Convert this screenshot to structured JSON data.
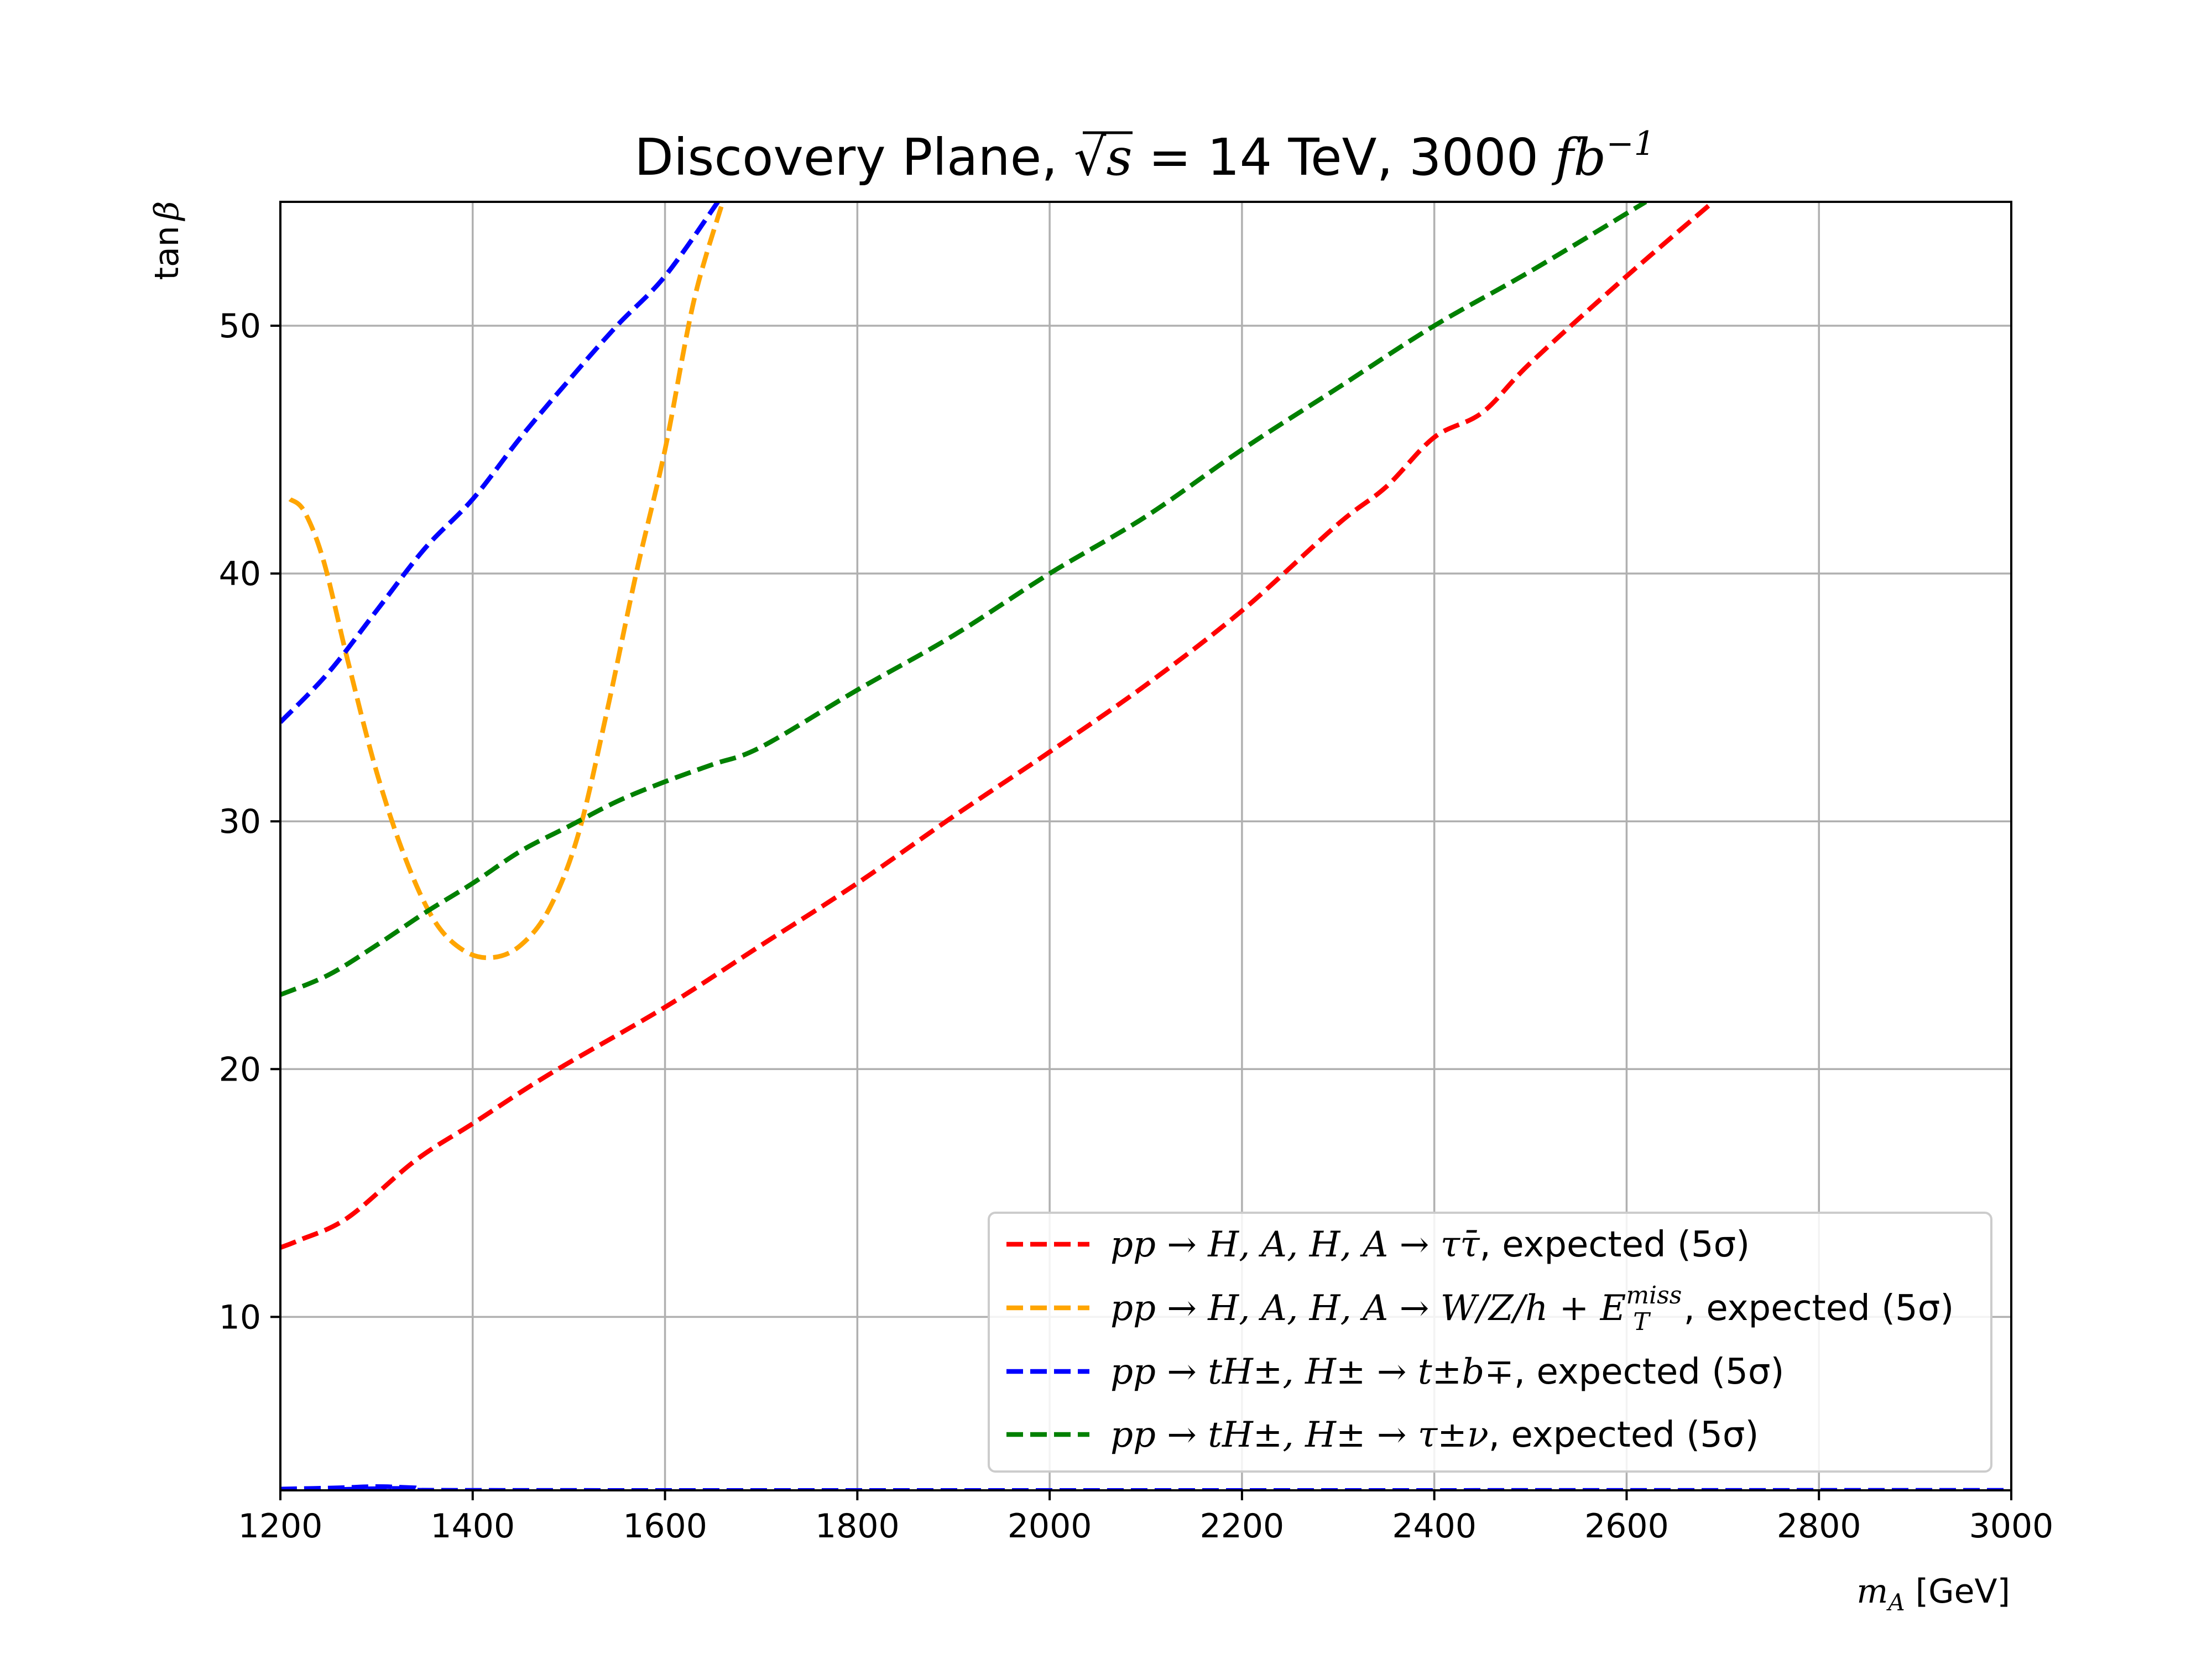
{
  "chart_data": {
    "type": "line",
    "title": "Discovery Plane, √s = 14 TeV, 3000 fb⁻¹",
    "title_parts": {
      "prefix": "Discovery Plane, √",
      "s": "s",
      "mid": " = 14 TeV, 3000 ",
      "fb": "fb",
      "exp": "−1"
    },
    "xlabel": "m_A [GeV]",
    "xlabel_parts": {
      "m": "m",
      "sub": "A",
      "unit": " [GeV]"
    },
    "ylabel": "tanβ",
    "ylabel_parts": {
      "tan": "tan",
      "beta": "β"
    },
    "xlim": [
      1200,
      3000
    ],
    "ylim": [
      3,
      55
    ],
    "xticks": [
      1200,
      1400,
      1600,
      1800,
      2000,
      2200,
      2400,
      2600,
      2800,
      3000
    ],
    "yticks": [
      10,
      20,
      30,
      40,
      50
    ],
    "grid": true,
    "legend_location": "lower-right",
    "series": [
      {
        "name": "pp→H,A,H,A→ττ̄, expected (5σ)",
        "legend_math": "pp → H, A, H, A → ττ̄",
        "legend_suffix": ", expected (5σ)",
        "color": "#ff0000",
        "x": [
          1200,
          1220,
          1270,
          1340,
          1400,
          1480,
          1600,
          1700,
          1800,
          1900,
          2000,
          2100,
          2200,
          2300,
          2350,
          2400,
          2450,
          2500,
          2600,
          2690
        ],
        "y": [
          12.8,
          13.1,
          14.0,
          16.3,
          17.8,
          19.8,
          22.5,
          25.0,
          27.5,
          30.2,
          32.8,
          35.5,
          38.5,
          42.0,
          43.5,
          45.5,
          46.5,
          48.5,
          52.0,
          55.0
        ]
      },
      {
        "name": "pp→H,A,H,A→W/Z/h+E_T^miss, expected (5σ)",
        "legend_math": "pp → H, A, H, A → W/Z/h + E",
        "legend_sup": "miss",
        "legend_sub": "T",
        "legend_suffix": ", expected (5σ)",
        "color": "#ffa500",
        "x": [
          1210,
          1225,
          1245,
          1270,
          1300,
          1330,
          1360,
          1390,
          1420,
          1450,
          1480,
          1510,
          1540,
          1570,
          1600,
          1630,
          1660
        ],
        "y": [
          43.0,
          42.5,
          40.5,
          36.5,
          32.0,
          28.5,
          26.0,
          24.8,
          24.5,
          25.0,
          26.5,
          29.5,
          34.5,
          40.0,
          45.0,
          51.0,
          55.0
        ]
      },
      {
        "name": "pp→tH±, H±→t±b∓, expected (5σ)",
        "legend_math": "pp → tH±, H± → t±b∓",
        "legend_suffix": ", expected (5σ)",
        "color": "#0000ff",
        "x": [
          1200,
          1250,
          1300,
          1350,
          1400,
          1450,
          1500,
          1550,
          1600,
          1655
        ],
        "y": [
          34.0,
          36.0,
          38.5,
          41.0,
          43.0,
          45.5,
          47.8,
          50.0,
          52.0,
          55.0
        ],
        "x_baseline": [
          1200,
          1260,
          1300,
          1340,
          1400,
          3000
        ],
        "y_baseline": [
          3.05,
          3.1,
          3.15,
          3.1,
          3.0,
          3.0
        ]
      },
      {
        "name": "pp→tH±, H±→τ±ν, expected (5σ)",
        "legend_math": "pp → tH±, H± → τ±ν",
        "legend_suffix": ", expected (5σ)",
        "color": "#008000",
        "x": [
          1200,
          1250,
          1300,
          1350,
          1400,
          1450,
          1500,
          1550,
          1600,
          1650,
          1700,
          1800,
          1900,
          2000,
          2100,
          2200,
          2300,
          2400,
          2500,
          2620
        ],
        "y": [
          23.0,
          23.8,
          25.0,
          26.3,
          27.5,
          28.8,
          29.8,
          30.8,
          31.6,
          32.3,
          33.0,
          35.3,
          37.5,
          40.0,
          42.3,
          45.0,
          47.5,
          50.0,
          52.2,
          55.0
        ]
      }
    ]
  }
}
